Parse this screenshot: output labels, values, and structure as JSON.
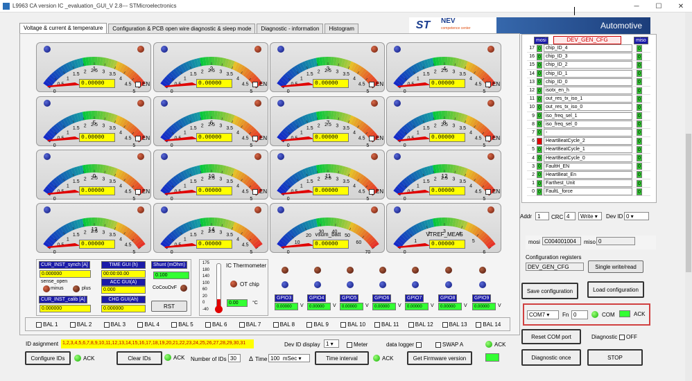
{
  "window": {
    "title": "L9963 CA version IC _evaluation_GUI_V 2.8--- STMicroelectronics"
  },
  "tabs": [
    "Voltage & current & temperature",
    "Configuration & PCB open wire diagnostic & sleep mode",
    "Diagnostic - information",
    "Histogram"
  ],
  "banner": {
    "st": "ST",
    "nevc": "NEV",
    "nevc_sub": "competence center",
    "automotive": "Automotive"
  },
  "gauges": [
    {
      "label": "1",
      "value": "0.00000",
      "en": "EN"
    },
    {
      "label": "2",
      "value": "0.00000",
      "en": "EN"
    },
    {
      "label": "3",
      "value": "0.00000",
      "en": "EN"
    },
    {
      "label": "4",
      "value": "0.00000",
      "en": "EN"
    },
    {
      "label": "5",
      "value": "0.00000",
      "en": "EN"
    },
    {
      "label": "6",
      "value": "0.00000",
      "en": "EN"
    },
    {
      "label": "7",
      "value": "0.00000",
      "en": "EN"
    },
    {
      "label": "8",
      "value": "0.00000",
      "en": "EN"
    },
    {
      "label": "9",
      "value": "0.00000",
      "en": "EN"
    },
    {
      "label": "10",
      "value": "0.00000",
      "en": "EN"
    },
    {
      "label": "11",
      "value": "0.00000",
      "en": "EN"
    },
    {
      "label": "12",
      "value": "0.00000",
      "en": "EN"
    },
    {
      "label": "13",
      "value": "0.00000",
      "en": ""
    },
    {
      "label": "14",
      "value": "0.00000",
      "en": ""
    },
    {
      "label": "vsum_batt",
      "value": "0.00000",
      "en": ""
    },
    {
      "label": "VTREF_MEAS",
      "value": "0.00000",
      "en": ""
    }
  ],
  "gauge_scales": {
    "std": [
      "0",
      "0.5",
      "1",
      "1.5",
      "2",
      "2.5",
      "3",
      "3.5",
      "4",
      "4.5",
      "5"
    ],
    "vsum": [
      "0",
      "10",
      "20",
      "30",
      "40",
      "50",
      "60",
      "70"
    ],
    "vtref": [
      "0",
      "1",
      "2",
      "3",
      "4",
      "5",
      "6"
    ]
  },
  "current": {
    "cur_inst_synch": "CUR_INST_synch [A]",
    "cur_inst_synch_val": "0.000000",
    "time_gui": "TIME GUI (h)",
    "time_gui_val": "00:00:00.00",
    "shunt": "Shunt (mOhm)",
    "shunt_val": "0.100",
    "sense_open": "sense_open",
    "minus": "minus",
    "plus": "plus",
    "acc_gui": "ACC GUI(A)",
    "acc_gui_val": "0.000",
    "cocouovf": "CoCouOvF",
    "cur_inst_calib": "CUR_INST_calib [A]",
    "cur_inst_calib_val": "0.000000",
    "chg_gui": "CHG GUI(Ah)",
    "chg_gui_val": "0.000000",
    "rst": "RST"
  },
  "thermo": {
    "title": "IC Thermometer",
    "ot": "OT chip",
    "value": "0.00",
    "unit": "°C",
    "scale": [
      "175",
      "180",
      "140",
      "100",
      "60",
      "20",
      "0",
      "-40"
    ]
  },
  "gpios": [
    {
      "name": "GPIO3",
      "value": "0.00000",
      "unit": "V"
    },
    {
      "name": "GPIO4",
      "value": "0.00000",
      "unit": "V"
    },
    {
      "name": "GPIO5",
      "value": "0.00000",
      "unit": "V"
    },
    {
      "name": "GPIO6",
      "value": "0.00000",
      "unit": "V"
    },
    {
      "name": "GPIO7",
      "value": "0.00000",
      "unit": "V"
    },
    {
      "name": "GPIO8",
      "value": "0.00000",
      "unit": "V"
    },
    {
      "name": "GPIO9",
      "value": "0.00000",
      "unit": "V"
    }
  ],
  "bal": [
    "BAL 1",
    "BAL 2",
    "BAL 3",
    "BAL 4",
    "BAL 5",
    "BAL 6",
    "BAL 7",
    "BAL 8",
    "BAL 9",
    "BAL 10",
    "BAL 11",
    "BAL 12",
    "BAL 13",
    "BAL 14"
  ],
  "register": {
    "mosi": "mosi",
    "name": "DEV_GEN_CFG",
    "miso": "miso",
    "rows": [
      {
        "n": "17",
        "mo": "0",
        "name": "chip_ID_4",
        "mi": "0"
      },
      {
        "n": "16",
        "mo": "0",
        "name": "chip_ID_3",
        "mi": "0"
      },
      {
        "n": "15",
        "mo": "0",
        "name": "chip_ID_2",
        "mi": "0"
      },
      {
        "n": "14",
        "mo": "0",
        "name": "chip_ID_1",
        "mi": "0"
      },
      {
        "n": "13",
        "mo": "0",
        "name": "chip_ID_0",
        "mi": "0"
      },
      {
        "n": "12",
        "mo": "0",
        "name": "isotx_en_h",
        "mi": "0"
      },
      {
        "n": "11",
        "mo": "0",
        "name": "out_res_tx_iso_1",
        "mi": "0"
      },
      {
        "n": "10",
        "mo": "0",
        "name": "out_res_tx_iso_0",
        "mi": "0"
      },
      {
        "n": "9",
        "mo": "0",
        "name": "iso_freq_sel_1",
        "mi": "0"
      },
      {
        "n": "8",
        "mo": "0",
        "name": "iso_freq_sel_0",
        "mi": "0"
      },
      {
        "n": "7",
        "mo": "0",
        "name": "-",
        "mi": "0"
      },
      {
        "n": "6",
        "mo": "",
        "name": "HeartBeatCycle_2",
        "mi": "0"
      },
      {
        "n": "5",
        "mo": "0",
        "name": "HeartBeatCycle_1",
        "mi": "0"
      },
      {
        "n": "4",
        "mo": "0",
        "name": "HeartBeatCycle_0",
        "mi": "0"
      },
      {
        "n": "3",
        "mo": "0",
        "name": "FaultH_EN",
        "mi": "0"
      },
      {
        "n": "2",
        "mo": "0",
        "name": "HeartBeat_En",
        "mi": "0"
      },
      {
        "n": "1",
        "mo": "0",
        "name": "Farthest_Unit",
        "mi": "0"
      },
      {
        "n": "0",
        "mo": "0",
        "name": "FaultL_force",
        "mi": "0"
      }
    ]
  },
  "addr": {
    "addr_label": "Addr",
    "addr_val": "1",
    "crc_label": "CRC",
    "crc_val": "4",
    "rw_val": "Write",
    "devid_label": "Dev ID",
    "devid_val": "0"
  },
  "mosi_line": {
    "mosi_label": "mosi",
    "mosi_val": "C004001004",
    "miso_label": "miso",
    "miso_val": "0"
  },
  "config": {
    "label": "Configuration registers",
    "value": "DEV_GEN_CFG",
    "single": "Single write/read",
    "save": "Save configuration",
    "load": "Load configuration"
  },
  "com": {
    "port": "COM7",
    "fn_label": "Fn",
    "fn_val": "0",
    "com_label": "COM",
    "ack_label": "ACK"
  },
  "bottom_right": {
    "reset": "Reset  COM port",
    "diag_label": "Diagnostic",
    "diag_val": "OFF",
    "diag_once": "Diagnostic once",
    "stop": "STOP"
  },
  "bottom": {
    "id_assign": "ID asignment",
    "id_list": "1,2,3,4,5,6,7,8,9,10,11,12,13,14,15,16,17,18,19,20,21,22,23,24,25,26,27,28,29,30,31",
    "devid_display": "Dev ID display",
    "devid_display_val": "1",
    "meter": "Meter",
    "data_logger": "data logger",
    "swap": "SWAP A",
    "ack": "ACK",
    "configure_ids": "Configure IDs",
    "ack1": "ACK",
    "clear_ids": "Clear IDs",
    "ack2": "ACK",
    "num_ids_label": "Number of IDs",
    "num_ids_val": "30",
    "time_label": "Time",
    "time_val": "100",
    "time_unit": "mSec",
    "time_interval": "Time interval",
    "ack3": "ACK",
    "firmware": "Get Firmware version"
  }
}
